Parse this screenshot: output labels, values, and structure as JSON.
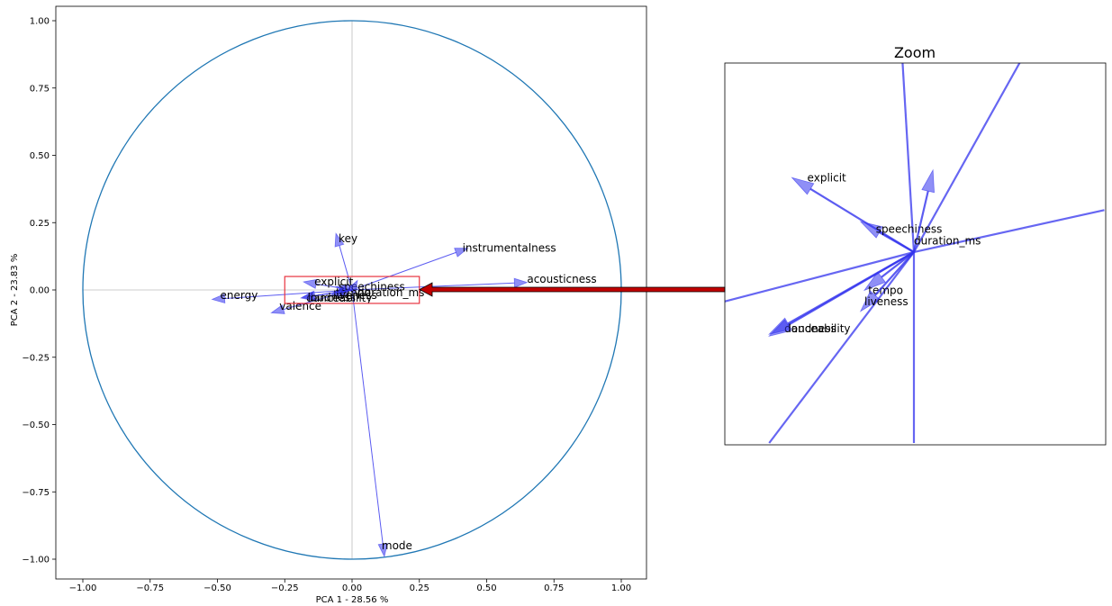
{
  "chart_data": [
    {
      "type": "scatter",
      "kind": "pca-correlation-circle",
      "title": "",
      "xlabel": "PCA 1 - 28.56 %",
      "ylabel": "PCA 2 - 23.83 %",
      "xlim": [
        -1.05,
        1.05
      ],
      "ylim": [
        -1.05,
        1.08
      ],
      "xticks": [
        -1.0,
        -0.75,
        -0.5,
        -0.25,
        0.0,
        0.25,
        0.5,
        0.75,
        1.0
      ],
      "yticks": [
        -1.0,
        -0.75,
        -0.5,
        -0.25,
        0.0,
        0.25,
        0.5,
        0.75,
        1.0
      ],
      "xtick_labels": [
        "−1.00",
        "−0.75",
        "−0.50",
        "−0.25",
        "0.00",
        "0.25",
        "0.50",
        "0.75",
        "1.00"
      ],
      "ytick_labels": [
        "−1.00",
        "−0.75",
        "−0.50",
        "−0.25",
        "0.00",
        "0.25",
        "0.50",
        "0.75",
        "1.00"
      ],
      "circle_color": "#1f77b4",
      "arrow_color": "#3333ee",
      "highlight_box": {
        "x": [
          -0.25,
          0.25
        ],
        "y": [
          -0.05,
          0.05
        ],
        "color": "#e8333f"
      },
      "vectors": [
        {
          "name": "key",
          "x": -0.06,
          "y": 0.21,
          "label_x": -0.05,
          "label_y": 0.19
        },
        {
          "name": "instrumentalness",
          "x": 0.43,
          "y": 0.155,
          "label_x": 0.41,
          "label_y": 0.155
        },
        {
          "name": "acousticness",
          "x": 0.65,
          "y": 0.028,
          "label_x": 0.65,
          "label_y": 0.04
        },
        {
          "name": "energy",
          "x": -0.52,
          "y": -0.035,
          "label_x": -0.49,
          "label_y": -0.02
        },
        {
          "name": "valence",
          "x": -0.3,
          "y": -0.085,
          "label_x": -0.27,
          "label_y": -0.06
        },
        {
          "name": "mode",
          "x": 0.12,
          "y": -0.99,
          "label_x": 0.11,
          "label_y": -0.95
        },
        {
          "name": "explicit",
          "x": -0.18,
          "y": 0.03,
          "label_x": -0.14,
          "label_y": 0.03
        },
        {
          "name": "speechiness",
          "x": -0.06,
          "y": 0.012,
          "label_x": -0.05,
          "label_y": 0.012
        },
        {
          "name": "duration_ms",
          "x": 0.02,
          "y": 0.035,
          "label_x": 0.02,
          "label_y": -0.01
        },
        {
          "name": "tempo",
          "x": -0.07,
          "y": -0.01,
          "label_x": -0.06,
          "label_y": -0.01
        },
        {
          "name": "liveness",
          "x": -0.08,
          "y": -0.02,
          "label_x": -0.07,
          "label_y": -0.02
        },
        {
          "name": "danceability",
          "x": -0.19,
          "y": -0.03,
          "label_x": -0.17,
          "label_y": -0.03
        },
        {
          "name": "loudness",
          "x": -0.185,
          "y": -0.028,
          "label_x": -0.165,
          "label_y": -0.028
        }
      ]
    },
    {
      "type": "scatter",
      "kind": "zoom-inset",
      "title": "Zoom",
      "xlim": [
        -0.25,
        0.25
      ],
      "ylim": [
        -0.05,
        0.05
      ],
      "vectors": [
        {
          "name": "explicit",
          "x": -0.16,
          "y": 0.0195,
          "label_x": -0.14,
          "label_y": 0.0195
        },
        {
          "name": "speechiness",
          "x": -0.07,
          "y": 0.008,
          "label_x": -0.05,
          "label_y": 0.006
        },
        {
          "name": "duration_ms",
          "x": 0.025,
          "y": 0.0215,
          "label_x": 0.0,
          "label_y": 0.003
        },
        {
          "name": "tempo",
          "x": -0.065,
          "y": -0.01,
          "label_x": -0.06,
          "label_y": -0.01
        },
        {
          "name": "liveness",
          "x": -0.07,
          "y": -0.0155,
          "label_x": -0.065,
          "label_y": -0.013
        },
        {
          "name": "danceability",
          "x": -0.19,
          "y": -0.022,
          "label_x": -0.17,
          "label_y": -0.02
        },
        {
          "name": "loudness",
          "x": -0.19,
          "y": -0.0215,
          "label_x": -0.165,
          "label_y": -0.02
        }
      ],
      "through_lines": [
        {
          "x": -0.015,
          "y": 0.05
        },
        {
          "x": 0.14,
          "y": 0.05
        },
        {
          "x": 0.25,
          "y": 0.011
        },
        {
          "x": -0.25,
          "y": -0.013
        },
        {
          "x": -0.19,
          "y": -0.05
        },
        {
          "x": 0.0,
          "y": -0.05
        }
      ]
    }
  ]
}
